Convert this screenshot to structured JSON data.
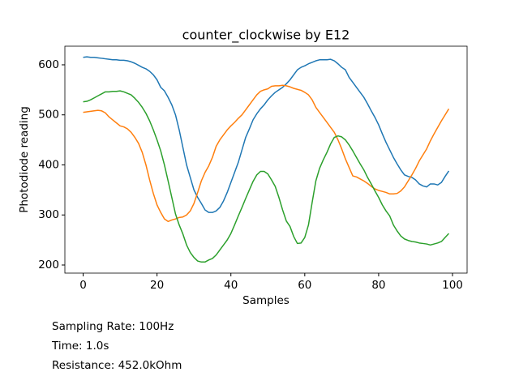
{
  "chart_data": {
    "type": "line",
    "title": "counter_clockwise by E12",
    "xlabel": "Samples",
    "ylabel": "Photodiode reading",
    "x": [
      0,
      1,
      2,
      3,
      4,
      5,
      6,
      7,
      8,
      9,
      10,
      11,
      12,
      13,
      14,
      15,
      16,
      17,
      18,
      19,
      20,
      21,
      22,
      23,
      24,
      25,
      26,
      27,
      28,
      29,
      30,
      31,
      32,
      33,
      34,
      35,
      36,
      37,
      38,
      39,
      40,
      41,
      42,
      43,
      44,
      45,
      46,
      47,
      48,
      49,
      50,
      51,
      52,
      53,
      54,
      55,
      56,
      57,
      58,
      59,
      60,
      61,
      62,
      63,
      64,
      65,
      66,
      67,
      68,
      69,
      70,
      71,
      72,
      73,
      74,
      75,
      76,
      77,
      78,
      79,
      80,
      81,
      82,
      83,
      84,
      85,
      86,
      87,
      88,
      89,
      90,
      91,
      92,
      93,
      94,
      95,
      96,
      97,
      98,
      99
    ],
    "series": [
      {
        "color": "#1f77b4",
        "values": [
          615,
          616,
          615,
          615,
          614,
          613,
          612,
          611,
          610,
          610,
          609,
          609,
          608,
          606,
          603,
          599,
          595,
          592,
          587,
          580,
          570,
          555,
          548,
          535,
          520,
          500,
          470,
          435,
          400,
          375,
          350,
          335,
          323,
          310,
          305,
          305,
          308,
          315,
          328,
          345,
          365,
          385,
          405,
          430,
          455,
          472,
          490,
          502,
          512,
          520,
          530,
          538,
          545,
          550,
          555,
          562,
          570,
          580,
          590,
          595,
          598,
          602,
          605,
          608,
          610,
          610,
          610,
          611,
          608,
          602,
          595,
          590,
          575,
          565,
          555,
          545,
          535,
          522,
          508,
          495,
          480,
          462,
          445,
          430,
          415,
          402,
          390,
          380,
          377,
          375,
          370,
          362,
          358,
          356,
          362,
          362,
          360,
          365,
          377,
          388
        ]
      },
      {
        "color": "#ff7f0e",
        "values": [
          505,
          506,
          507,
          508,
          509,
          508,
          504,
          496,
          490,
          484,
          478,
          476,
          472,
          465,
          455,
          443,
          425,
          400,
          370,
          343,
          320,
          305,
          292,
          287,
          290,
          292,
          295,
          296,
          300,
          308,
          323,
          345,
          368,
          385,
          398,
          415,
          437,
          450,
          460,
          470,
          478,
          485,
          493,
          500,
          510,
          520,
          530,
          540,
          547,
          550,
          552,
          557,
          558,
          558,
          559,
          558,
          556,
          553,
          551,
          549,
          545,
          540,
          530,
          515,
          505,
          495,
          485,
          475,
          465,
          450,
          432,
          412,
          395,
          378,
          376,
          372,
          368,
          363,
          357,
          352,
          349,
          347,
          345,
          342,
          342,
          343,
          348,
          356,
          368,
          380,
          393,
          408,
          420,
          432,
          448,
          462,
          475,
          488,
          500,
          512
        ]
      },
      {
        "color": "#2ca02c",
        "values": [
          526,
          527,
          530,
          534,
          538,
          542,
          546,
          546,
          547,
          547,
          548,
          546,
          543,
          540,
          533,
          525,
          515,
          503,
          488,
          470,
          450,
          428,
          400,
          368,
          335,
          302,
          280,
          262,
          240,
          225,
          215,
          208,
          206,
          206,
          210,
          213,
          220,
          230,
          240,
          250,
          263,
          280,
          298,
          315,
          333,
          350,
          367,
          380,
          387,
          387,
          382,
          370,
          357,
          335,
          310,
          288,
          277,
          257,
          243,
          244,
          255,
          280,
          325,
          368,
          393,
          410,
          425,
          442,
          455,
          458,
          456,
          450,
          440,
          428,
          415,
          402,
          390,
          375,
          362,
          348,
          335,
          320,
          308,
          298,
          280,
          268,
          258,
          252,
          249,
          247,
          246,
          244,
          243,
          242,
          240,
          242,
          244,
          247,
          255,
          263
        ]
      }
    ],
    "xlim": [
      -4.95,
      103.95
    ],
    "ylim": [
      183.8,
      637.2
    ],
    "xticks": [
      0,
      20,
      40,
      60,
      80,
      100
    ],
    "yticks": [
      200,
      300,
      400,
      500,
      600
    ],
    "annotations": [
      "Sampling Rate: 100Hz",
      "Time: 1.0s",
      "Resistance: 452.0kOhm"
    ]
  }
}
